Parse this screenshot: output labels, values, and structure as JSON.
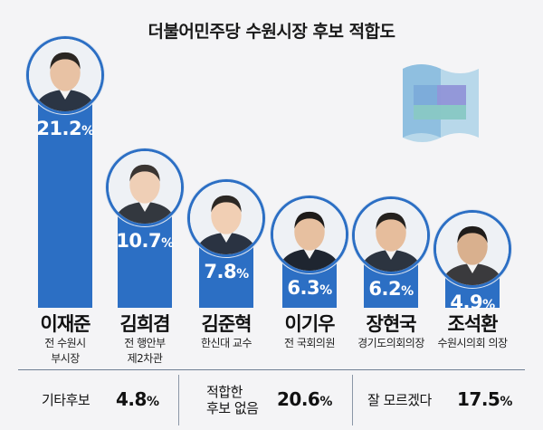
{
  "chart_data": {
    "type": "bar",
    "title": "더불어민주당 수원시장 후보 적합도",
    "unit": "%",
    "categories": [
      "이재준",
      "김희겸",
      "김준혁",
      "이기우",
      "장현국",
      "조석환"
    ],
    "values": [
      21.2,
      10.7,
      7.8,
      6.3,
      6.2,
      4.9
    ],
    "candidates": [
      {
        "name": "이재준",
        "role": [
          "전 수원시",
          "부시장"
        ],
        "value": 21.2
      },
      {
        "name": "김희겸",
        "role": [
          "전 행안부",
          "제2차관"
        ],
        "value": 10.7
      },
      {
        "name": "김준혁",
        "role": [
          "한신대 교수"
        ],
        "value": 7.8
      },
      {
        "name": "이기우",
        "role": [
          "전 국회의원"
        ],
        "value": 6.3
      },
      {
        "name": "장현국",
        "role": [
          "경기도의회의장"
        ],
        "value": 6.2
      },
      {
        "name": "조석환",
        "role": [
          "수원시의회 의장"
        ],
        "value": 4.9
      }
    ],
    "others": [
      {
        "label": [
          "기타후보"
        ],
        "value": 4.8
      },
      {
        "label": [
          "적합한",
          "후보 없음"
        ],
        "value": 20.6
      },
      {
        "label": [
          "잘 모르겠다"
        ],
        "value": 17.5
      }
    ],
    "colors": {
      "bar": "#2c6fc4",
      "background": "#f4f4f6"
    }
  }
}
